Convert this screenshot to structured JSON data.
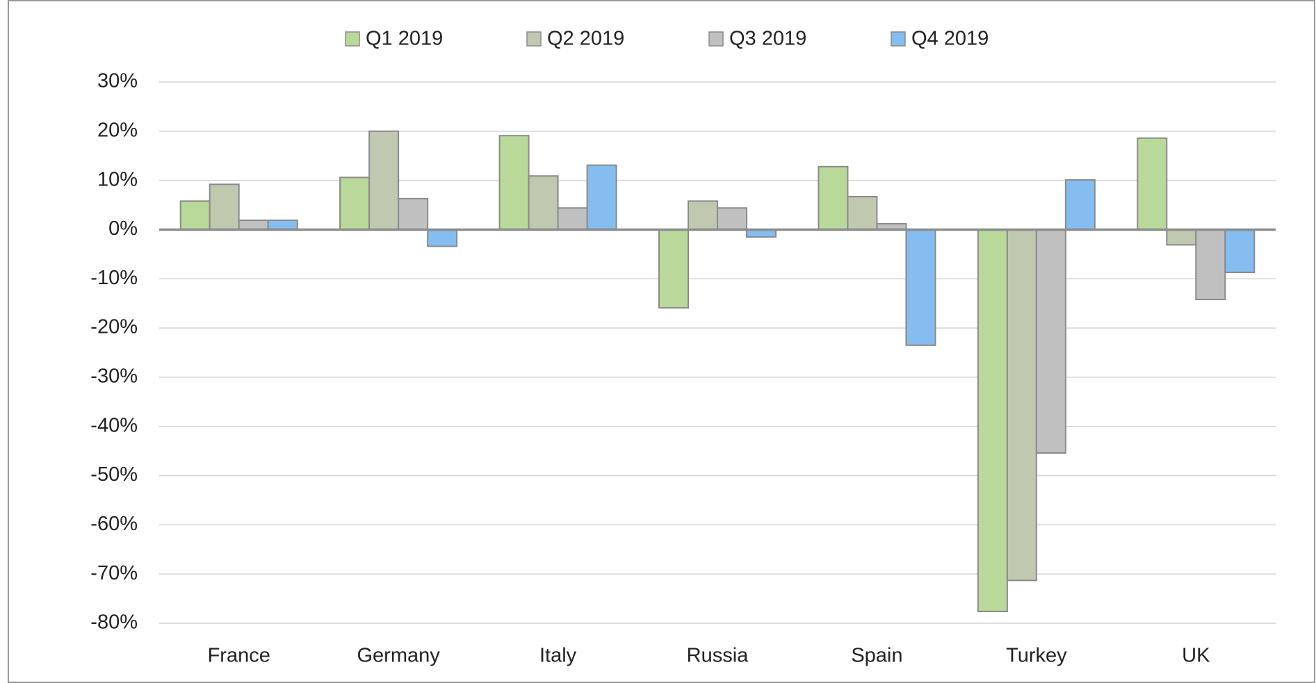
{
  "chart_data": {
    "type": "bar",
    "categories": [
      "France",
      "Germany",
      "Italy",
      "Russia",
      "Spain",
      "Turkey",
      "UK"
    ],
    "series": [
      {
        "name": "Q1 2019",
        "color": "#b8d99a",
        "values": [
          5.8,
          10.6,
          19.1,
          -15.9,
          12.8,
          -77.6,
          18.6
        ]
      },
      {
        "name": "Q2 2019",
        "color": "#c0c8b0",
        "values": [
          9.2,
          20,
          10.9,
          5.8,
          6.7,
          -71.3,
          -3.1
        ]
      },
      {
        "name": "Q3 2019",
        "color": "#c0c0c0",
        "values": [
          1.9,
          6.3,
          4.4,
          4.4,
          1.2,
          -45.4,
          -14.2
        ]
      },
      {
        "name": "Q4 2019",
        "color": "#85bdf0",
        "values": [
          1.9,
          -3.4,
          13.1,
          -1.5,
          -23.5,
          10.1,
          -8.7
        ]
      }
    ],
    "ylim": [
      -80,
      30
    ],
    "yticks": [
      {
        "value": 30,
        "label": "30%"
      },
      {
        "value": 20,
        "label": "20%"
      },
      {
        "value": 10,
        "label": "10%"
      },
      {
        "value": 0,
        "label": "0%"
      },
      {
        "value": -10,
        "label": "-10%"
      },
      {
        "value": -20,
        "label": "-20%"
      },
      {
        "value": -30,
        "label": "-30%"
      },
      {
        "value": -40,
        "label": "-40%"
      },
      {
        "value": -50,
        "label": "-50%"
      },
      {
        "value": -60,
        "label": "-60%"
      },
      {
        "value": -70,
        "label": "-70%"
      },
      {
        "value": -80,
        "label": "-80%"
      }
    ],
    "grid": true,
    "legend": "top"
  }
}
